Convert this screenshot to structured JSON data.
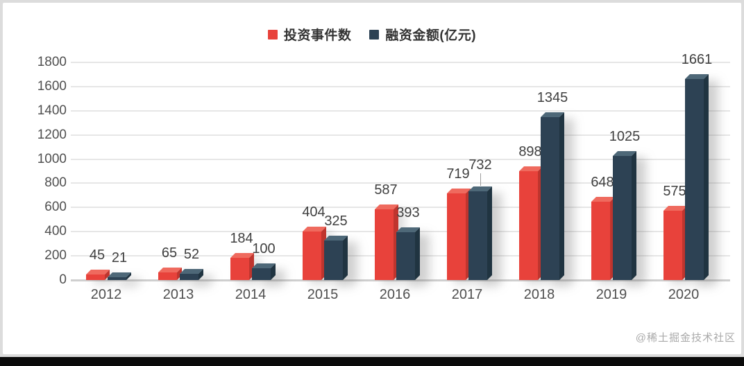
{
  "watermark": "@稀土掘金技术社区",
  "chart_data": {
    "type": "bar",
    "categories": [
      "2012",
      "2013",
      "2014",
      "2015",
      "2016",
      "2017",
      "2018",
      "2019",
      "2020"
    ],
    "series": [
      {
        "name": "投资事件数",
        "values": [
          45,
          65,
          184,
          404,
          587,
          719,
          898,
          648,
          575
        ],
        "color_front": "#e8423b",
        "color_top": "#ef6a5e",
        "color_side": "#bf352e"
      },
      {
        "name": "融资金额(亿元)",
        "values": [
          21,
          52,
          100,
          325,
          393,
          732,
          1345,
          1025,
          1661
        ],
        "color_front": "#2d4254",
        "color_top": "#4e6878",
        "color_side": "#203441"
      }
    ],
    "title": "",
    "xlabel": "",
    "ylabel": "",
    "ylim": [
      0,
      1800
    ],
    "ytick_step": 200,
    "grid": true,
    "legend_position": "top",
    "bar_style": "3d",
    "callout": {
      "series": 1,
      "index": 5,
      "raise": 10
    },
    "colors": {
      "grid": "#e6e6e6",
      "axis": "#cfcfcf",
      "label_text": "#3f3f3f",
      "tick_text": "#4f4f4f",
      "leader": "#9b9b9b"
    }
  }
}
